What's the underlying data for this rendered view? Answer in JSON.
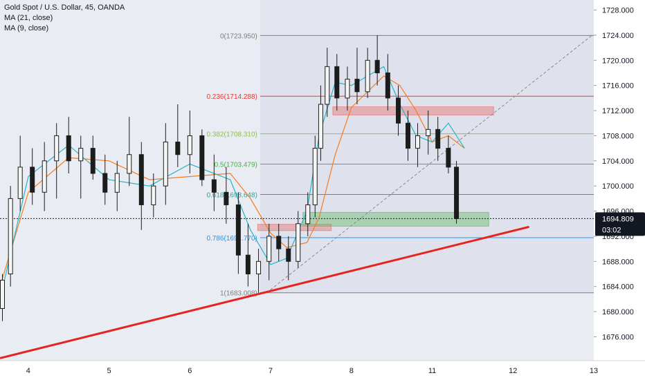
{
  "header": {
    "symbol_line": "Gold Spot / U.S. Dollar, 45, OANDA",
    "ma_lines": [
      "MA (21, close)",
      "MA (9, close)"
    ]
  },
  "colors": {
    "background": "#e9ecf2",
    "up_candle": "#1c1c1c",
    "down_candle": "#1c1c1c",
    "ma21": "#f57c1f",
    "ma9": "#22b6c9",
    "trendline": "#e8231f",
    "fib_levels": [
      "#7e7e7e",
      "#e53935",
      "#8bc34a",
      "#4caf50",
      "#26a69a",
      "#2196f3",
      "#7e7e7e"
    ],
    "resistance_box": "#e57373",
    "support_box": "#66bb6a",
    "price_tag": "#131722"
  },
  "chart_data": {
    "type": "candlestick",
    "symbol": "Gold Spot / U.S. Dollar",
    "timeframe": "45",
    "source": "OANDA",
    "y_axis": {
      "ticks": [
        "1728.000",
        "1724.000",
        "1720.000",
        "1716.000",
        "1712.000",
        "1708.000",
        "1704.000",
        "1700.000",
        "1696.000",
        "1692.000",
        "1688.000",
        "1684.000",
        "1680.000",
        "1676.000"
      ],
      "ylim": [
        1672.2,
        1729.6
      ]
    },
    "x_axis": {
      "ticks": [
        "4",
        "5",
        "6",
        "7",
        "8",
        "11",
        "12",
        "13"
      ],
      "tick_positions": [
        0.5,
        1.5,
        2.5,
        3.5,
        4.5,
        5.5,
        6.5,
        7.5
      ],
      "xlim": [
        0.15,
        7.5
      ]
    },
    "last_price": "1694.809",
    "countdown": "03:02",
    "fib_retracement": {
      "x_range": [
        3.37,
        7.5
      ],
      "levels": [
        {
          "label": "0(1723.950)",
          "price": 1723.95
        },
        {
          "label": "0.236(1714.288)",
          "price": 1714.288
        },
        {
          "label": "0.382(1708.310)",
          "price": 1708.31
        },
        {
          "label": "0.5(1703.479)",
          "price": 1703.479
        },
        {
          "label": "0.618(1698.648)",
          "price": 1698.648
        },
        {
          "label": "0.786(1691.770)",
          "price": 1691.77
        },
        {
          "label": "1(1683.008)",
          "price": 1683.008
        }
      ]
    },
    "trendline": {
      "from": [
        0.15,
        1672.6
      ],
      "to": [
        6.7,
        1693.5
      ]
    },
    "diagonal_dashed": {
      "from": [
        3.45,
        1683.0
      ],
      "to": [
        7.47,
        1723.9
      ]
    },
    "resistance_zones": [
      {
        "x": [
          4.27,
          6.26
        ],
        "y": [
          1711.3,
          1712.6
        ]
      },
      {
        "x": [
          3.34,
          4.25
        ],
        "y": [
          1692.9,
          1693.9
        ]
      }
    ],
    "support_zones": [
      {
        "x": [
          3.9,
          6.2
        ],
        "y": [
          1693.6,
          1695.8
        ]
      }
    ],
    "ma_series": [
      {
        "name": "MA (21, close)",
        "x": [
          0.15,
          0.5,
          1.0,
          1.5,
          2.0,
          2.5,
          3.0,
          3.25,
          3.5,
          3.7,
          3.95,
          4.1,
          4.3,
          4.5,
          4.9,
          5.1,
          5.3,
          5.5,
          5.7,
          5.9
        ],
        "values": [
          1684.0,
          1699.0,
          1704.5,
          1704.0,
          1701.0,
          1701.5,
          1702.0,
          1698.0,
          1692.5,
          1690.2,
          1691.0,
          1695.0,
          1705.0,
          1712.5,
          1717.5,
          1716.0,
          1712.0,
          1707.0,
          1708.0,
          1706.0
        ]
      },
      {
        "name": "MA (9, close)",
        "x": [
          0.15,
          0.5,
          1.0,
          1.5,
          2.0,
          2.5,
          3.0,
          3.25,
          3.5,
          3.7,
          3.95,
          4.1,
          4.3,
          4.5,
          4.9,
          5.1,
          5.3,
          5.5,
          5.7,
          5.9
        ],
        "values": [
          1682.0,
          1701.5,
          1706.5,
          1701.0,
          1700.0,
          1703.5,
          1701.0,
          1693.0,
          1687.5,
          1688.5,
          1696.0,
          1708.0,
          1716.5,
          1716.0,
          1719.0,
          1713.0,
          1708.0,
          1707.0,
          1710.0,
          1706.0
        ]
      }
    ],
    "candles": [
      {
        "x": 0.18,
        "o": 1680.5,
        "h": 1686.0,
        "l": 1678.5,
        "c": 1685.0
      },
      {
        "x": 0.28,
        "o": 1686.0,
        "h": 1700.0,
        "l": 1684.0,
        "c": 1698.0
      },
      {
        "x": 0.4,
        "o": 1698.0,
        "h": 1708.0,
        "l": 1696.0,
        "c": 1703.0
      },
      {
        "x": 0.55,
        "o": 1703.0,
        "h": 1706.0,
        "l": 1697.0,
        "c": 1699.0
      },
      {
        "x": 0.7,
        "o": 1699.0,
        "h": 1707.0,
        "l": 1696.0,
        "c": 1704.0
      },
      {
        "x": 0.85,
        "o": 1704.0,
        "h": 1710.0,
        "l": 1698.0,
        "c": 1708.0
      },
      {
        "x": 1.0,
        "o": 1708.0,
        "h": 1711.0,
        "l": 1702.0,
        "c": 1704.0
      },
      {
        "x": 1.15,
        "o": 1704.0,
        "h": 1708.0,
        "l": 1698.0,
        "c": 1706.0
      },
      {
        "x": 1.3,
        "o": 1706.0,
        "h": 1708.0,
        "l": 1701.0,
        "c": 1702.0
      },
      {
        "x": 1.45,
        "o": 1702.0,
        "h": 1705.0,
        "l": 1697.0,
        "c": 1699.0
      },
      {
        "x": 1.6,
        "o": 1699.0,
        "h": 1704.0,
        "l": 1696.0,
        "c": 1702.0
      },
      {
        "x": 1.75,
        "o": 1702.0,
        "h": 1711.0,
        "l": 1700.0,
        "c": 1705.0
      },
      {
        "x": 1.9,
        "o": 1705.0,
        "h": 1707.0,
        "l": 1693.0,
        "c": 1697.0
      },
      {
        "x": 2.05,
        "o": 1697.0,
        "h": 1702.0,
        "l": 1695.0,
        "c": 1700.0
      },
      {
        "x": 2.2,
        "o": 1700.0,
        "h": 1710.0,
        "l": 1697.0,
        "c": 1707.0
      },
      {
        "x": 2.35,
        "o": 1707.0,
        "h": 1713.0,
        "l": 1703.0,
        "c": 1705.0
      },
      {
        "x": 2.5,
        "o": 1705.0,
        "h": 1712.0,
        "l": 1702.0,
        "c": 1708.0
      },
      {
        "x": 2.65,
        "o": 1708.0,
        "h": 1709.0,
        "l": 1700.0,
        "c": 1701.0
      },
      {
        "x": 2.8,
        "o": 1701.0,
        "h": 1705.0,
        "l": 1696.0,
        "c": 1699.0
      },
      {
        "x": 2.95,
        "o": 1699.0,
        "h": 1703.0,
        "l": 1694.0,
        "c": 1697.0
      },
      {
        "x": 3.1,
        "o": 1697.0,
        "h": 1699.0,
        "l": 1686.0,
        "c": 1689.0
      },
      {
        "x": 3.22,
        "o": 1689.0,
        "h": 1694.0,
        "l": 1684.0,
        "c": 1686.0
      },
      {
        "x": 3.35,
        "o": 1686.0,
        "h": 1690.0,
        "l": 1683.0,
        "c": 1688.0
      },
      {
        "x": 3.48,
        "o": 1688.0,
        "h": 1694.0,
        "l": 1685.0,
        "c": 1692.0
      },
      {
        "x": 3.6,
        "o": 1692.0,
        "h": 1694.0,
        "l": 1688.0,
        "c": 1690.0
      },
      {
        "x": 3.72,
        "o": 1690.0,
        "h": 1692.0,
        "l": 1685.0,
        "c": 1688.0
      },
      {
        "x": 3.84,
        "o": 1688.0,
        "h": 1696.0,
        "l": 1687.0,
        "c": 1694.0
      },
      {
        "x": 3.96,
        "o": 1694.0,
        "h": 1699.0,
        "l": 1692.0,
        "c": 1697.0
      },
      {
        "x": 4.05,
        "o": 1697.0,
        "h": 1708.0,
        "l": 1695.0,
        "c": 1706.0
      },
      {
        "x": 4.12,
        "o": 1706.0,
        "h": 1716.0,
        "l": 1704.0,
        "c": 1713.0
      },
      {
        "x": 4.2,
        "o": 1713.0,
        "h": 1722.0,
        "l": 1711.0,
        "c": 1719.0
      },
      {
        "x": 4.32,
        "o": 1719.0,
        "h": 1721.0,
        "l": 1712.0,
        "c": 1714.0
      },
      {
        "x": 4.45,
        "o": 1714.0,
        "h": 1719.0,
        "l": 1712.0,
        "c": 1717.0
      },
      {
        "x": 4.57,
        "o": 1717.0,
        "h": 1722.0,
        "l": 1713.0,
        "c": 1715.0
      },
      {
        "x": 4.7,
        "o": 1715.0,
        "h": 1722.0,
        "l": 1714.0,
        "c": 1720.0
      },
      {
        "x": 4.82,
        "o": 1720.0,
        "h": 1724.0,
        "l": 1716.0,
        "c": 1718.0
      },
      {
        "x": 4.95,
        "o": 1718.0,
        "h": 1721.0,
        "l": 1712.0,
        "c": 1714.0
      },
      {
        "x": 5.08,
        "o": 1714.0,
        "h": 1716.0,
        "l": 1708.0,
        "c": 1710.0
      },
      {
        "x": 5.2,
        "o": 1710.0,
        "h": 1712.0,
        "l": 1704.0,
        "c": 1706.0
      },
      {
        "x": 5.32,
        "o": 1706.0,
        "h": 1710.0,
        "l": 1703.0,
        "c": 1708.0
      },
      {
        "x": 5.45,
        "o": 1708.0,
        "h": 1712.0,
        "l": 1705.0,
        "c": 1709.0
      },
      {
        "x": 5.57,
        "o": 1709.0,
        "h": 1711.0,
        "l": 1704.0,
        "c": 1706.0
      },
      {
        "x": 5.7,
        "o": 1706.0,
        "h": 1708.0,
        "l": 1702.0,
        "c": 1703.0
      },
      {
        "x": 5.8,
        "o": 1703.0,
        "h": 1704.0,
        "l": 1694.0,
        "c": 1694.8
      }
    ]
  }
}
